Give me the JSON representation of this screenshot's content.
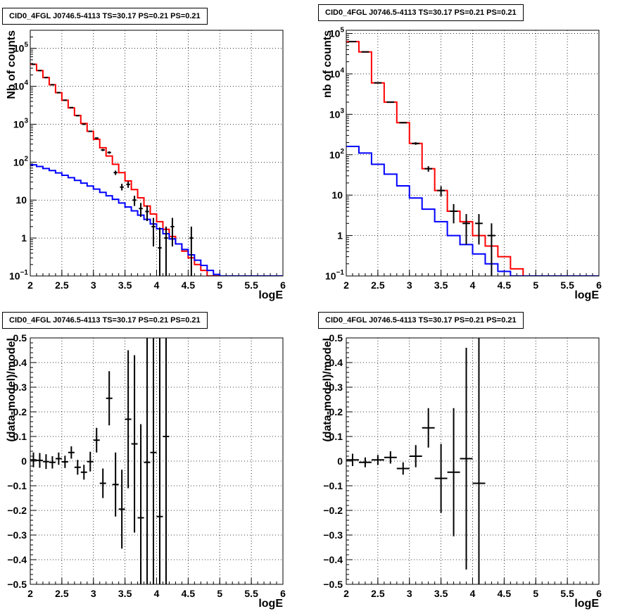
{
  "colors": {
    "total_model": "#ff0000",
    "background_model": "#0000ff",
    "data": "#000000",
    "grid": "#000000"
  },
  "chart_data": [
    {
      "type": "line",
      "title": "CID0_4FGL J0746.5-4113 TS=30.17 PS=0.21 PS=0.21",
      "xlabel": "logE",
      "ylabel": "Nb of counts",
      "xlim": [
        2,
        6
      ],
      "ylim": [
        0.1,
        300000
      ],
      "yscale": "log",
      "grid": true,
      "x_ticks": [
        "2",
        "2.5",
        "3",
        "3.5",
        "4",
        "4.5",
        "5",
        "5.5",
        "6"
      ],
      "y_ticks": [
        {
          "value": 0.1,
          "base": "10",
          "exp": "−1"
        },
        {
          "value": 1,
          "label": "1"
        },
        {
          "value": 10,
          "label": "10"
        },
        {
          "value": 100,
          "base": "10",
          "exp": "2"
        },
        {
          "value": 1000,
          "base": "10",
          "exp": "3"
        },
        {
          "value": 10000,
          "base": "10",
          "exp": "4"
        },
        {
          "value": 100000,
          "base": "10",
          "exp": "5"
        }
      ],
      "bin_edges": [
        2.0,
        2.1,
        2.2,
        2.3,
        2.4,
        2.5,
        2.6,
        2.7,
        2.8,
        2.9,
        3.0,
        3.1,
        3.2,
        3.3,
        3.4,
        3.5,
        3.6,
        3.7,
        3.8,
        3.9,
        4.0,
        4.1,
        4.2,
        4.3,
        4.4,
        4.5,
        4.6,
        4.7,
        4.8,
        4.9,
        5.0,
        5.1,
        5.2,
        5.3,
        5.4,
        5.5,
        5.6,
        5.7,
        5.8,
        5.9,
        6.0
      ],
      "series": [
        {
          "color": "#ff0000",
          "values": [
            38000,
            26000,
            17000,
            11000,
            6800,
            4300,
            2700,
            1700,
            1050,
            650,
            400,
            240,
            145,
            88,
            53,
            32,
            19,
            11.5,
            7,
            4.3,
            2.7,
            1.7,
            1.1,
            0.7,
            0.45,
            0.3,
            0.2,
            0.14,
            0.1,
            0.1,
            0.1,
            0.1,
            0.1,
            0.1,
            0.1,
            0.1,
            0.1,
            0.1,
            0.1,
            0.1
          ]
        },
        {
          "color": "#0000ff",
          "values": [
            85,
            77,
            68,
            60,
            52,
            45,
            39,
            33,
            28,
            23.5,
            19.5,
            16,
            13,
            10.5,
            8.4,
            6.6,
            5.2,
            4,
            3.1,
            2.35,
            1.75,
            1.3,
            0.95,
            0.7,
            0.5,
            0.36,
            0.26,
            0.19,
            0.14,
            0.11,
            0.1,
            0.1,
            0.1,
            0.1,
            0.1,
            0.1,
            0.1,
            0.1,
            0.1,
            0.1
          ]
        }
      ],
      "points": [
        {
          "x": 2.05,
          "y": 38000,
          "lo": 37800,
          "hi": 38200
        },
        {
          "x": 2.15,
          "y": 26000,
          "lo": 25850,
          "hi": 26150
        },
        {
          "x": 2.25,
          "y": 17000,
          "lo": 16880,
          "hi": 17120
        },
        {
          "x": 2.35,
          "y": 11000,
          "lo": 10900,
          "hi": 11100
        },
        {
          "x": 2.45,
          "y": 6800,
          "lo": 6720,
          "hi": 6880
        },
        {
          "x": 2.55,
          "y": 4300,
          "lo": 4240,
          "hi": 4360
        },
        {
          "x": 2.65,
          "y": 2750,
          "lo": 2700,
          "hi": 2800
        },
        {
          "x": 2.75,
          "y": 1680,
          "lo": 1640,
          "hi": 1720
        },
        {
          "x": 2.85,
          "y": 1000,
          "lo": 970,
          "hi": 1030
        },
        {
          "x": 2.95,
          "y": 650,
          "lo": 625,
          "hi": 675
        },
        {
          "x": 3.05,
          "y": 430,
          "lo": 410,
          "hi": 450
        },
        {
          "x": 3.15,
          "y": 210,
          "lo": 196,
          "hi": 224
        },
        {
          "x": 3.25,
          "y": 180,
          "lo": 167,
          "hi": 193
        },
        {
          "x": 3.35,
          "y": 53,
          "lo": 46,
          "hi": 60
        },
        {
          "x": 3.45,
          "y": 22,
          "lo": 18,
          "hi": 27
        },
        {
          "x": 3.55,
          "y": 26,
          "lo": 21,
          "hi": 31
        },
        {
          "x": 3.65,
          "y": 10,
          "lo": 7,
          "hi": 13
        },
        {
          "x": 3.75,
          "y": 6,
          "lo": 3.6,
          "hi": 8.4
        },
        {
          "x": 3.85,
          "y": 5,
          "lo": 2.8,
          "hi": 7.2
        },
        {
          "x": 3.95,
          "y": 2,
          "lo": 0.6,
          "hi": 3.4
        },
        {
          "x": 4.05,
          "y": 0.55,
          "lo": 0.1,
          "hi": 1.9
        },
        {
          "x": 4.15,
          "y": 1,
          "lo": 0.1,
          "hi": 2
        },
        {
          "x": 4.25,
          "y": 2,
          "lo": 0.6,
          "hi": 3.4
        },
        {
          "x": 4.55,
          "y": 1,
          "lo": 0.1,
          "hi": 2
        }
      ]
    },
    {
      "type": "line",
      "title": "CID0_4FGL J0746.5-4113 TS=30.17 PS=0.21 PS=0.21",
      "xlabel": "logE",
      "ylabel": "nb of counts",
      "xlim": [
        2,
        6
      ],
      "ylim": [
        0.1,
        120000
      ],
      "yscale": "log",
      "grid": true,
      "x_ticks": [
        "2",
        "2.5",
        "3",
        "3.5",
        "4",
        "4.5",
        "5",
        "5.5",
        "6"
      ],
      "y_ticks": [
        {
          "value": 0.1,
          "base": "10",
          "exp": "−1"
        },
        {
          "value": 1,
          "label": "1"
        },
        {
          "value": 10,
          "label": "10"
        },
        {
          "value": 100,
          "base": "10",
          "exp": "2"
        },
        {
          "value": 1000,
          "base": "10",
          "exp": "3"
        },
        {
          "value": 10000,
          "base": "10",
          "exp": "4"
        },
        {
          "value": 100000,
          "base": "10",
          "exp": "5"
        }
      ],
      "bin_edges": [
        2.0,
        2.2,
        2.4,
        2.6,
        2.8,
        3.0,
        3.2,
        3.4,
        3.6,
        3.8,
        4.0,
        4.2,
        4.4,
        4.6,
        4.8,
        5.0,
        5.2,
        5.4,
        5.6,
        5.8,
        6.0
      ],
      "series": [
        {
          "color": "#ff0000",
          "values": [
            63000,
            35000,
            6000,
            2000,
            620,
            190,
            45,
            13,
            4,
            2.2,
            1,
            0.55,
            0.3,
            0.15,
            0.1,
            0.1,
            0.1,
            0.1,
            0.1,
            0.1
          ]
        },
        {
          "color": "#0000ff",
          "values": [
            160,
            110,
            58,
            33,
            17,
            8.5,
            4.5,
            2.2,
            1,
            0.6,
            0.35,
            0.2,
            0.13,
            0.1,
            0.1,
            0.1,
            0.1,
            0.1,
            0.1,
            0.1
          ]
        }
      ],
      "points": [
        {
          "x": 2.1,
          "y": 63000,
          "lo": 62750,
          "hi": 63250
        },
        {
          "x": 2.3,
          "y": 35000,
          "lo": 34810,
          "hi": 35190
        },
        {
          "x": 2.5,
          "y": 6000,
          "lo": 5920,
          "hi": 6080
        },
        {
          "x": 2.7,
          "y": 2000,
          "lo": 1955,
          "hi": 2045
        },
        {
          "x": 2.9,
          "y": 620,
          "lo": 595,
          "hi": 645
        },
        {
          "x": 3.1,
          "y": 190,
          "lo": 176,
          "hi": 204
        },
        {
          "x": 3.3,
          "y": 45,
          "lo": 38,
          "hi": 52
        },
        {
          "x": 3.5,
          "y": 13,
          "lo": 9.4,
          "hi": 16.6
        },
        {
          "x": 3.7,
          "y": 4,
          "lo": 2,
          "hi": 6
        },
        {
          "x": 3.9,
          "y": 2,
          "lo": 0.6,
          "hi": 3.4
        },
        {
          "x": 4.1,
          "y": 2,
          "lo": 0.6,
          "hi": 3.4
        },
        {
          "x": 4.3,
          "y": 1,
          "lo": 0.1,
          "hi": 2
        }
      ]
    },
    {
      "type": "scatter",
      "title": "CID0_4FGL J0746.5-4113 TS=30.17 PS=0.21 PS=0.21",
      "xlabel": "logE",
      "ylabel": "(data-model)/model",
      "xlim": [
        2,
        6
      ],
      "ylim": [
        -0.5,
        0.5
      ],
      "yscale": "linear",
      "grid": true,
      "x_ticks": [
        "2",
        "2.5",
        "3",
        "3.5",
        "4",
        "4.5",
        "5",
        "5.5",
        "6"
      ],
      "y_ticks": [
        {
          "value": -0.5,
          "label": "−0.5"
        },
        {
          "value": -0.4,
          "label": "−0.4"
        },
        {
          "value": -0.3,
          "label": "−0.3"
        },
        {
          "value": -0.2,
          "label": "−0.2"
        },
        {
          "value": -0.1,
          "label": "−0.1"
        },
        {
          "value": 0,
          "label": "0"
        },
        {
          "value": 0.1,
          "label": "0.1"
        },
        {
          "value": 0.2,
          "label": "0.2"
        },
        {
          "value": 0.3,
          "label": "0.3"
        },
        {
          "value": 0.4,
          "label": "0.4"
        },
        {
          "value": 0.5,
          "label": "0.5"
        }
      ],
      "points": [
        {
          "x": 2.05,
          "y": 0.005,
          "err": 0.03,
          "hw": 0.05
        },
        {
          "x": 2.15,
          "y": 0.003,
          "err": 0.03,
          "hw": 0.05
        },
        {
          "x": 2.25,
          "y": -0.002,
          "err": 0.03,
          "hw": 0.05
        },
        {
          "x": 2.35,
          "y": -0.005,
          "err": 0.025,
          "hw": 0.05
        },
        {
          "x": 2.45,
          "y": 0.01,
          "err": 0.025,
          "hw": 0.05
        },
        {
          "x": 2.55,
          "y": -0.003,
          "err": 0.025,
          "hw": 0.05
        },
        {
          "x": 2.65,
          "y": 0.035,
          "err": 0.025,
          "hw": 0.05
        },
        {
          "x": 2.75,
          "y": -0.025,
          "err": 0.03,
          "hw": 0.05
        },
        {
          "x": 2.85,
          "y": -0.045,
          "err": 0.03,
          "hw": 0.05
        },
        {
          "x": 2.95,
          "y": -0.002,
          "err": 0.04,
          "hw": 0.05
        },
        {
          "x": 3.05,
          "y": 0.085,
          "err": 0.05,
          "hw": 0.05
        },
        {
          "x": 3.15,
          "y": -0.09,
          "err": 0.06,
          "hw": 0.05
        },
        {
          "x": 3.25,
          "y": 0.255,
          "err": 0.11,
          "hw": 0.05
        },
        {
          "x": 3.35,
          "y": -0.095,
          "err": 0.13,
          "hw": 0.05
        },
        {
          "x": 3.45,
          "y": -0.195,
          "err": 0.16,
          "hw": 0.05
        },
        {
          "x": 3.55,
          "y": 0.17,
          "err": 0.28,
          "hw": 0.05
        },
        {
          "x": 3.65,
          "y": 0.07,
          "err": 0.36,
          "hw": 0.05
        },
        {
          "x": 3.75,
          "y": -0.23,
          "err": 0.38,
          "hw": 0.05
        },
        {
          "x": 3.85,
          "y": -0.005,
          "err": 0.6,
          "hw": 0.05
        },
        {
          "x": 3.95,
          "y": 0.035,
          "err": 0.7,
          "hw": 0.05
        },
        {
          "x": 4.05,
          "y": -0.225,
          "err": 0.8,
          "hw": 0.05
        },
        {
          "x": 4.15,
          "y": 0.1,
          "err": 0.9,
          "hw": 0.05
        }
      ]
    },
    {
      "type": "scatter",
      "title": "CID0_4FGL J0746.5-4113 TS=30.17 PS=0.21 PS=0.21",
      "xlabel": "logE",
      "ylabel": "(data-model)/model",
      "xlim": [
        2,
        6
      ],
      "ylim": [
        -0.5,
        0.5
      ],
      "yscale": "linear",
      "grid": true,
      "x_ticks": [
        "2",
        "2.5",
        "3",
        "3.5",
        "4",
        "4.5",
        "5",
        "5.5",
        "6"
      ],
      "y_ticks": [
        {
          "value": -0.5,
          "label": "−0.5"
        },
        {
          "value": -0.4,
          "label": "−0.4"
        },
        {
          "value": -0.3,
          "label": "−0.3"
        },
        {
          "value": -0.2,
          "label": "−0.2"
        },
        {
          "value": -0.1,
          "label": "−0.1"
        },
        {
          "value": 0,
          "label": "0"
        },
        {
          "value": 0.1,
          "label": "0.1"
        },
        {
          "value": 0.2,
          "label": "0.2"
        },
        {
          "value": 0.3,
          "label": "0.3"
        },
        {
          "value": 0.4,
          "label": "0.4"
        },
        {
          "value": 0.5,
          "label": "0.5"
        }
      ],
      "points": [
        {
          "x": 2.1,
          "y": 0.005,
          "err": 0.025,
          "hw": 0.1
        },
        {
          "x": 2.3,
          "y": -0.005,
          "err": 0.02,
          "hw": 0.1
        },
        {
          "x": 2.5,
          "y": 0.005,
          "err": 0.02,
          "hw": 0.1
        },
        {
          "x": 2.7,
          "y": 0.015,
          "err": 0.025,
          "hw": 0.1
        },
        {
          "x": 2.9,
          "y": -0.03,
          "err": 0.025,
          "hw": 0.1
        },
        {
          "x": 3.1,
          "y": 0.02,
          "err": 0.045,
          "hw": 0.1
        },
        {
          "x": 3.3,
          "y": 0.135,
          "err": 0.08,
          "hw": 0.1
        },
        {
          "x": 3.5,
          "y": -0.07,
          "err": 0.14,
          "hw": 0.1
        },
        {
          "x": 3.7,
          "y": -0.045,
          "err": 0.26,
          "hw": 0.1
        },
        {
          "x": 3.9,
          "y": 0.01,
          "err": 0.45,
          "hw": 0.1
        },
        {
          "x": 4.1,
          "y": -0.09,
          "err": 0.9,
          "hw": 0.1
        }
      ]
    }
  ]
}
